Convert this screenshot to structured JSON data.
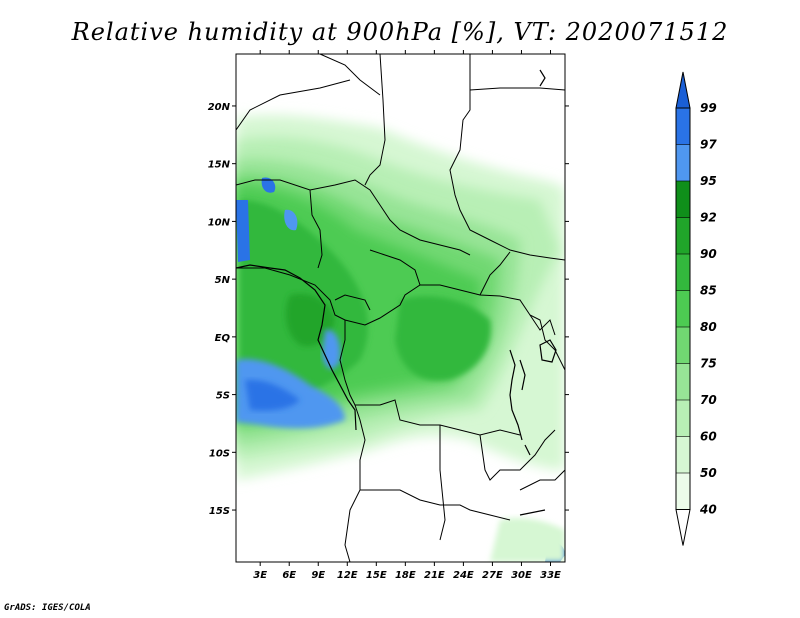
{
  "title": "Relative humidity at 900hPa [%], VT: 2020071512",
  "credit": "GrADS: IGES/COLA",
  "map": {
    "lat_labels": [
      "20N",
      "15N",
      "10N",
      "5N",
      "EQ",
      "5S",
      "10S",
      "15S"
    ],
    "lon_labels": [
      "3E",
      "6E",
      "9E",
      "12E",
      "15E",
      "18E",
      "21E",
      "24E",
      "27E",
      "30E",
      "33E"
    ],
    "lat_values": [
      20,
      15,
      10,
      5,
      0,
      -5,
      -10,
      -15
    ],
    "lon_values": [
      3,
      6,
      9,
      12,
      15,
      18,
      21,
      24,
      27,
      30,
      33
    ],
    "extent": {
      "lon_min": 0.5,
      "lon_max": 34.5,
      "lat_min": -19.5,
      "lat_max": 24.5
    }
  },
  "colorbar": {
    "labels": [
      "99",
      "97",
      "95",
      "92",
      "90",
      "85",
      "80",
      "75",
      "70",
      "60",
      "50",
      "40"
    ],
    "colors": [
      "#1a5fd6",
      "#2a73e6",
      "#4f97f0",
      "#0f8f1a",
      "#20a52a",
      "#33b83d",
      "#4dcb52",
      "#71d872",
      "#97e496",
      "#b8efb5",
      "#d6f7d3",
      "#ecfcea",
      "#ffffff"
    ]
  },
  "colors": {
    "land_dry": "#ffffff",
    "coast": "#000000"
  }
}
